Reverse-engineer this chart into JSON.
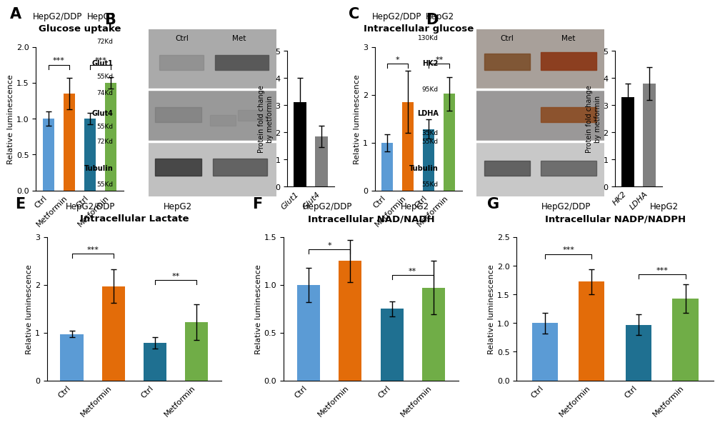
{
  "panel_A": {
    "title": "Glucose uptake",
    "subtitle_left": "HepG2/DDP",
    "subtitle_right": "HepG2",
    "ylabel": "Relative luminescence",
    "categories": [
      "Ctrl",
      "Metformin",
      "Ctrl",
      "Metformin"
    ],
    "values": [
      1.0,
      1.35,
      1.0,
      1.5
    ],
    "errors": [
      0.1,
      0.22,
      0.08,
      0.08
    ],
    "colors": [
      "#5B9BD5",
      "#E36C09",
      "#1F7091",
      "#70AD47"
    ],
    "ylim": [
      0,
      2.0
    ],
    "yticks": [
      0.0,
      0.5,
      1.0,
      1.5,
      2.0
    ],
    "sig1": "***",
    "sig2": "***"
  },
  "panel_B": {
    "bar_labels": [
      "Glut1",
      "Glut4"
    ],
    "bar_values": [
      3.1,
      1.85
    ],
    "bar_errors": [
      0.9,
      0.4
    ],
    "bar_colors": [
      "#000000",
      "#808080"
    ],
    "ylabel": "Protein fold change\nby metformin",
    "ylim": [
      0,
      5
    ],
    "yticks": [
      0,
      1,
      2,
      3,
      4,
      5
    ],
    "wb_labels_left": [
      "72Kd",
      "Glut1",
      "55Kd",
      "74Kd",
      "Glut4",
      "55Kd",
      "72Kd",
      "Tubulin",
      "55Kd"
    ],
    "wb_ctrl_label": "Ctrl",
    "wb_met_label": "Met"
  },
  "panel_C": {
    "title": "Intracellular glucose",
    "subtitle_left": "HepG2/DDP",
    "subtitle_right": "HepG2",
    "ylabel": "Relative luminescence",
    "categories": [
      "Ctrl",
      "Metformin",
      "Ctrl",
      "Metformin"
    ],
    "values": [
      1.0,
      1.85,
      1.28,
      2.02
    ],
    "errors": [
      0.18,
      0.65,
      0.2,
      0.35
    ],
    "colors": [
      "#5B9BD5",
      "#E36C09",
      "#1F7091",
      "#70AD47"
    ],
    "ylim": [
      0,
      3
    ],
    "yticks": [
      0,
      1,
      2,
      3
    ],
    "sig1": "*",
    "sig2": "**"
  },
  "panel_D": {
    "bar_labels": [
      "HK2",
      "LDHA"
    ],
    "bar_values": [
      3.3,
      3.8
    ],
    "bar_errors": [
      0.5,
      0.6
    ],
    "bar_colors": [
      "#000000",
      "#808080"
    ],
    "ylabel": "Protein fold change\nby metformin",
    "ylim": [
      0,
      5
    ],
    "yticks": [
      0,
      1,
      2,
      3,
      4,
      5
    ],
    "wb_ctrl_label": "Ctrl",
    "wb_met_label": "Met"
  },
  "panel_E": {
    "title": "Intracellular Lactate",
    "subtitle_left": "HepG2/DDP",
    "subtitle_right": "HepG2",
    "ylabel": "Relative luminescence",
    "categories": [
      "Ctrl",
      "Metformin",
      "Ctrl",
      "Metformin"
    ],
    "values": [
      0.97,
      1.97,
      0.78,
      1.22
    ],
    "errors": [
      0.07,
      0.35,
      0.12,
      0.37
    ],
    "colors": [
      "#5B9BD5",
      "#E36C09",
      "#1F7091",
      "#70AD47"
    ],
    "ylim": [
      0,
      3
    ],
    "yticks": [
      0,
      1,
      2,
      3
    ],
    "sig1": "***",
    "sig2": "**"
  },
  "panel_F": {
    "title": "Intracellular NAD/NADH",
    "subtitle_left": "HepG2/DDP",
    "subtitle_right": "HepG2",
    "ylabel": "Relative luminescence",
    "categories": [
      "Ctrl",
      "Metformin",
      "Ctrl",
      "Metformin"
    ],
    "values": [
      1.0,
      1.25,
      0.75,
      0.97
    ],
    "errors": [
      0.18,
      0.22,
      0.08,
      0.28
    ],
    "colors": [
      "#5B9BD5",
      "#E36C09",
      "#1F7091",
      "#70AD47"
    ],
    "ylim": [
      0,
      1.5
    ],
    "yticks": [
      0.0,
      0.5,
      1.0,
      1.5
    ],
    "sig1": "*",
    "sig2": "**"
  },
  "panel_G": {
    "title": "Intracellular NADP/NADPH",
    "subtitle_left": "HepG2/DDP",
    "subtitle_right": "HepG2",
    "ylabel": "Relative luminescence",
    "categories": [
      "Ctrl",
      "Metformin",
      "Ctrl",
      "Metformin"
    ],
    "values": [
      1.0,
      1.72,
      0.97,
      1.43
    ],
    "errors": [
      0.18,
      0.22,
      0.18,
      0.25
    ],
    "colors": [
      "#5B9BD5",
      "#E36C09",
      "#1F7091",
      "#70AD47"
    ],
    "ylim": [
      0,
      2.5
    ],
    "yticks": [
      0.0,
      0.5,
      1.0,
      1.5,
      2.0,
      2.5
    ],
    "sig1": "***",
    "sig2": "***"
  },
  "tick_fontsize": 8,
  "bar_width": 0.55,
  "background_color": "#FFFFFF"
}
